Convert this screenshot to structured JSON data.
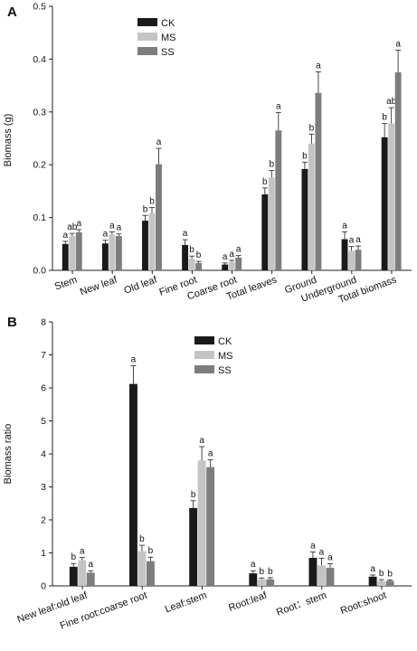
{
  "figure": {
    "panels": [
      {
        "letter": "A",
        "ylabel": "Biomass  (g)",
        "ylim": [
          0,
          0.5
        ],
        "yticks": [
          "0.0",
          "0.1",
          "0.2",
          "0.3",
          "0.4",
          "0.5"
        ],
        "legend": {
          "placement": "top-center",
          "entries": [
            "CK",
            "MS",
            "SS"
          ]
        },
        "series_colors": [
          "#1a1a1a",
          "#c4c4c4",
          "#7d7d7d"
        ]
      },
      {
        "letter": "B",
        "ylabel": "Biomass  ratio",
        "ylim": [
          0,
          8
        ],
        "yticks": [
          "0",
          "1",
          "2",
          "3",
          "4",
          "5",
          "6",
          "7",
          "8"
        ],
        "legend": {
          "placement": "top-center",
          "entries": [
            "CK",
            "MS",
            "SS"
          ]
        },
        "series_colors": [
          "#1a1a1a",
          "#c4c4c4",
          "#7d7d7d"
        ]
      }
    ]
  },
  "chart_data": [
    {
      "type": "bar",
      "title": "",
      "xlabel": "",
      "ylabel": "Biomass  (g)",
      "ylim": [
        0,
        0.5
      ],
      "grid": false,
      "legend": "top-center",
      "categories": [
        "Stem",
        "New leaf",
        "Old leaf",
        "Fine root",
        "Coarse root",
        "Total leaves",
        "Ground",
        "Underground",
        "Total biomass"
      ],
      "series": [
        {
          "name": "CK",
          "color": "#1a1a1a",
          "values": [
            0.05,
            0.051,
            0.094,
            0.048,
            0.011,
            0.144,
            0.192,
            0.059,
            0.252
          ],
          "errors": [
            0.005,
            0.006,
            0.01,
            0.01,
            0.003,
            0.012,
            0.013,
            0.014,
            0.026
          ],
          "letters": [
            "a",
            "a",
            "b",
            "a",
            "a",
            "b",
            "b",
            "a",
            "b"
          ]
        },
        {
          "name": "MS",
          "color": "#c4c4c4",
          "values": [
            0.065,
            0.068,
            0.108,
            0.022,
            0.016,
            0.176,
            0.24,
            0.037,
            0.278
          ],
          "errors": [
            0.005,
            0.005,
            0.011,
            0.005,
            0.003,
            0.013,
            0.018,
            0.008,
            0.03
          ],
          "letters": [
            "ab",
            "a",
            "b",
            "b",
            "a",
            "b",
            "b",
            "a",
            "ab"
          ]
        },
        {
          "name": "SS",
          "color": "#7d7d7d",
          "values": [
            0.072,
            0.065,
            0.201,
            0.014,
            0.024,
            0.265,
            0.336,
            0.039,
            0.375
          ],
          "errors": [
            0.005,
            0.004,
            0.03,
            0.003,
            0.004,
            0.034,
            0.04,
            0.007,
            0.042
          ],
          "letters": [
            "a",
            "a",
            "a",
            "b",
            "a",
            "a",
            "a",
            "a",
            "a"
          ]
        }
      ]
    },
    {
      "type": "bar",
      "title": "",
      "xlabel": "",
      "ylabel": "Biomass  ratio",
      "ylim": [
        0,
        8
      ],
      "grid": false,
      "legend": "top-center",
      "categories": [
        "New leaf:old leaf",
        "Fine root:coarse root",
        "Leaf:stem",
        "Root:leaf",
        "Root：stem",
        "Root:shoot"
      ],
      "series": [
        {
          "name": "CK",
          "color": "#1a1a1a",
          "values": [
            0.58,
            6.12,
            2.36,
            0.38,
            0.85,
            0.28
          ],
          "errors": [
            0.1,
            0.55,
            0.22,
            0.08,
            0.18,
            0.05
          ],
          "letters": [
            "b",
            "a",
            "b",
            "a",
            "a",
            "a"
          ]
        },
        {
          "name": "MS",
          "color": "#c4c4c4",
          "values": [
            0.78,
            1.05,
            3.8,
            0.2,
            0.62,
            0.15
          ],
          "errors": [
            0.08,
            0.18,
            0.42,
            0.04,
            0.22,
            0.04
          ],
          "letters": [
            "a",
            "b",
            "a",
            "b",
            "a",
            "b"
          ]
        },
        {
          "name": "SS",
          "color": "#7d7d7d",
          "values": [
            0.4,
            0.75,
            3.6,
            0.2,
            0.55,
            0.15
          ],
          "errors": [
            0.06,
            0.12,
            0.22,
            0.05,
            0.12,
            0.03
          ],
          "letters": [
            "a",
            "b",
            "a",
            "b",
            "a",
            "b"
          ]
        }
      ]
    }
  ]
}
